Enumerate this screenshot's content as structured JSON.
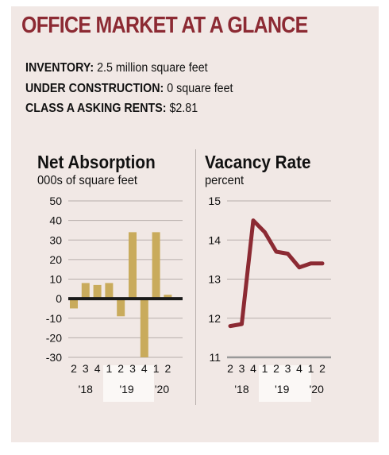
{
  "title": "OFFICE MARKET AT A GLANCE",
  "stats": [
    {
      "label": "INVENTORY:",
      "value": "2.5 million square feet"
    },
    {
      "label": "UNDER CONSTRUCTION:",
      "value": "0 square feet"
    },
    {
      "label": "CLASS A ASKING RENTS:",
      "value": "$2.81"
    }
  ],
  "colors": {
    "title": "#8c2a33",
    "bar": "#c9ab5c",
    "line": "#8c2a33",
    "panel": "#f1e8e5",
    "band": "#fbf8f6"
  },
  "chart_data": [
    {
      "type": "bar",
      "title": "Net Absorption",
      "subtitle": "000s of square feet",
      "categories": [
        "2 '18",
        "3 '18",
        "4 '18",
        "1 '19",
        "2 '19",
        "3 '19",
        "4 '19",
        "1 '20",
        "2 '20"
      ],
      "quarter_labels": [
        "2",
        "3",
        "4",
        "1",
        "2",
        "3",
        "4",
        "1",
        "2"
      ],
      "year_labels": [
        {
          "label": "'18",
          "index": 1
        },
        {
          "label": "'19",
          "index": 4.5
        },
        {
          "label": "'20",
          "index": 7.5
        }
      ],
      "highlight_range": [
        3,
        6
      ],
      "values": [
        -5,
        8,
        7,
        8,
        -9,
        34,
        -30,
        34,
        2
      ],
      "ylim": [
        -30,
        50
      ],
      "yticks": [
        50,
        40,
        30,
        20,
        10,
        0,
        -10,
        -20,
        -30
      ],
      "ytick_labels": [
        "50",
        "40",
        "30",
        "20",
        "10",
        "0",
        "-10",
        "-20",
        "-30"
      ],
      "grid": true
    },
    {
      "type": "line",
      "title": "Vacancy Rate",
      "subtitle": "percent",
      "categories": [
        "2 '18",
        "3 '18",
        "4 '18",
        "1 '19",
        "2 '19",
        "3 '19",
        "4 '19",
        "1 '20",
        "2 '20"
      ],
      "quarter_labels": [
        "2",
        "3",
        "4",
        "1",
        "2",
        "3",
        "4",
        "1",
        "2"
      ],
      "year_labels": [
        {
          "label": "'18",
          "index": 1
        },
        {
          "label": "'19",
          "index": 4.5
        },
        {
          "label": "'20",
          "index": 7.5
        }
      ],
      "highlight_range": [
        3,
        6
      ],
      "values": [
        11.8,
        11.85,
        14.5,
        14.2,
        13.7,
        13.65,
        13.3,
        13.4,
        13.4
      ],
      "ylim": [
        11,
        15
      ],
      "yticks": [
        15,
        14,
        13,
        12,
        11
      ],
      "ytick_labels": [
        "15",
        "14",
        "13",
        "12",
        "11"
      ],
      "grid": true
    }
  ]
}
